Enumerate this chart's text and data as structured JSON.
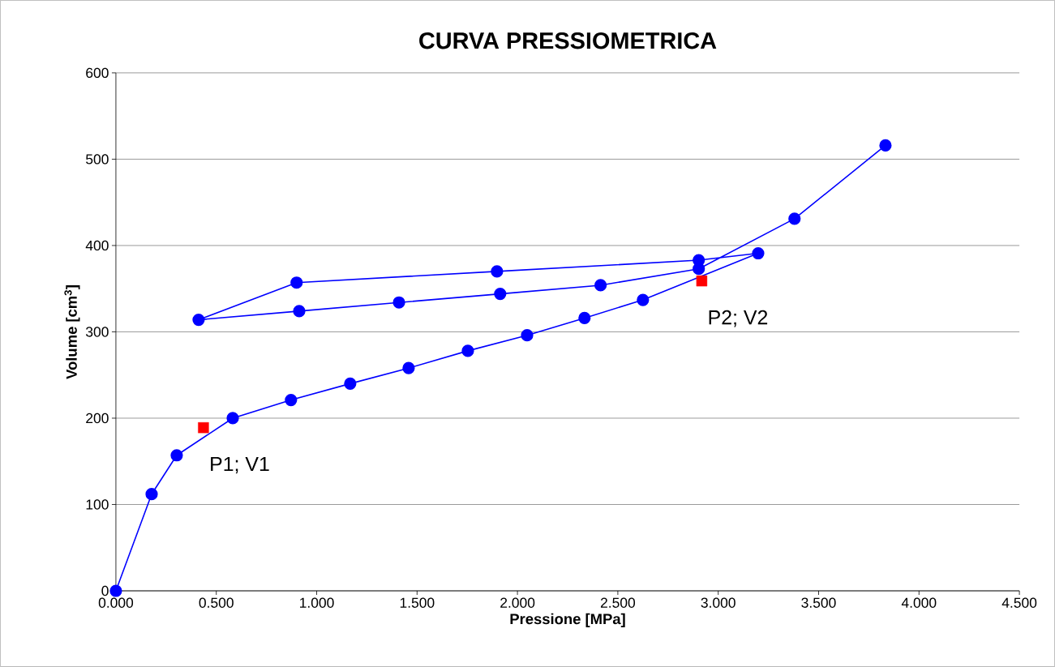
{
  "chart_data": {
    "type": "line",
    "title": "CURVA PRESSIOMETRICA",
    "xlabel": "Pressione [MPa]",
    "ylabel": "Volume [cm$^{3}$]",
    "series": [
      {
        "color": "#0000ff",
        "marker": "circle",
        "x": [
          0,
          0.178,
          0.303,
          0.582,
          0.872,
          1.167,
          1.458,
          1.753,
          2.048,
          2.334,
          2.625,
          3.199,
          2.903,
          1.898,
          0.9,
          0.412,
          0.913,
          1.41,
          1.914,
          2.414,
          2.903,
          3.38,
          3.833
        ],
        "values": [
          0,
          112,
          157,
          200,
          221,
          240,
          258,
          278,
          296,
          316,
          337,
          391,
          383,
          370,
          357,
          314,
          324,
          334,
          344,
          354,
          373,
          431,
          516
        ]
      },
      {
        "type": "scatter",
        "color": "#ff0000",
        "marker": "square",
        "x": [
          0.436,
          2.918
        ],
        "values": [
          189,
          359
        ]
      }
    ],
    "annotations": [
      {
        "text": "P1; V1",
        "x": 0.436,
        "y": 189
      },
      {
        "text": "P2; V2",
        "x": 2.918,
        "y": 359
      }
    ],
    "xlim": [
      0,
      4.5
    ],
    "ylim": [
      0,
      600
    ],
    "xticks": [
      {
        "value": 0,
        "label": "0.000"
      },
      {
        "value": 0.5,
        "label": "0.500"
      },
      {
        "value": 1,
        "label": "1.000"
      },
      {
        "value": 1.5,
        "label": "1.500"
      },
      {
        "value": 2,
        "label": "2.000"
      },
      {
        "value": 2.5,
        "label": "2.500"
      },
      {
        "value": 3,
        "label": "3.000"
      },
      {
        "value": 3.5,
        "label": "3.500"
      },
      {
        "value": 4,
        "label": "4.000"
      },
      {
        "value": 4.5,
        "label": "4.500"
      }
    ],
    "yticks": [
      0,
      100,
      200,
      300,
      400,
      500,
      600
    ],
    "grid": "y"
  }
}
